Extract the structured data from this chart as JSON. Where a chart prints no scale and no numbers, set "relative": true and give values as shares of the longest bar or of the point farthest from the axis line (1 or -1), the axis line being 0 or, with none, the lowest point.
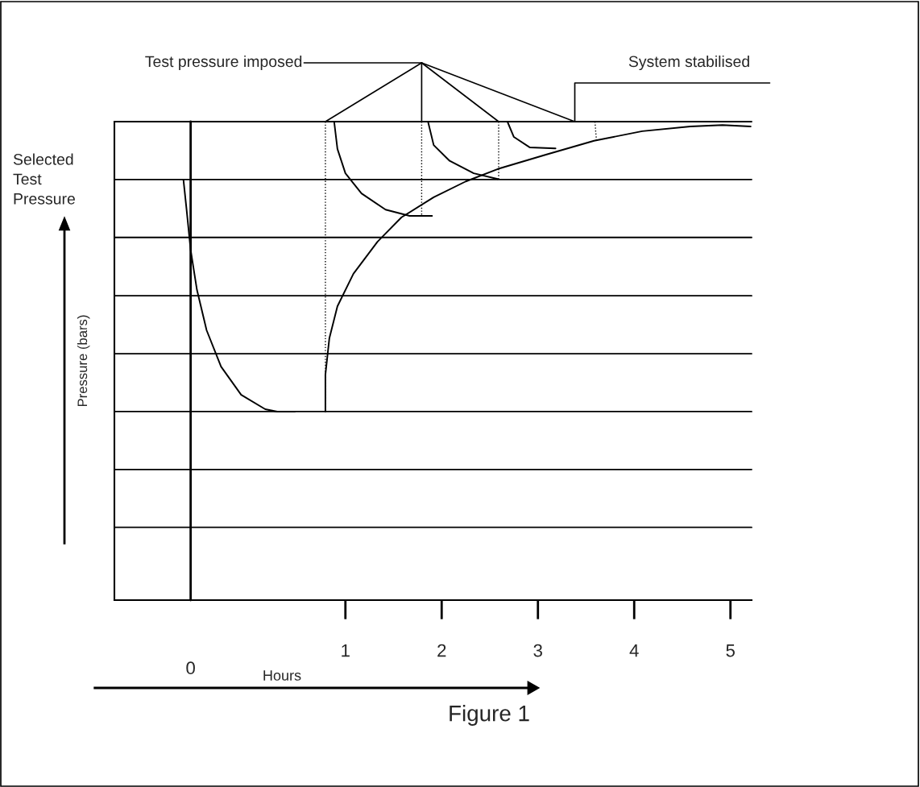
{
  "chart_data": {
    "type": "line",
    "title": "Figure 1",
    "xlabel": "Hours",
    "ylabel": "Pressure (bars)",
    "relative": true,
    "xlim": [
      -1.4,
      5.22
    ],
    "xticks": [
      1,
      2,
      3,
      4,
      5
    ],
    "series": [
      {
        "color": "#000000",
        "x": [
          -0.683,
          -0.65,
          -0.608,
          -0.542,
          -0.442,
          -0.292,
          -0.083,
          0.167,
          0.292,
          0.475
        ],
        "values": [
          0.879,
          0.816,
          0.732,
          0.648,
          0.564,
          0.488,
          0.429,
          0.399,
          0.394,
          0.394
        ]
      },
      {
        "color": "#000000",
        "x": [
          0.792,
          0.792,
          0.833,
          0.917,
          1.083,
          1.333,
          1.583,
          1.917,
          2.25,
          2.583,
          3.083,
          3.583,
          4.083,
          4.583,
          4.917,
          5.21
        ],
        "values": [
          0.394,
          0.471,
          0.547,
          0.614,
          0.682,
          0.749,
          0.8,
          0.842,
          0.875,
          0.901,
          0.931,
          0.96,
          0.98,
          0.99,
          0.993,
          0.99
        ]
      },
      {
        "color": "#000000",
        "x": [
          0.883,
          0.917,
          1.0,
          1.167,
          1.417,
          1.667,
          1.9
        ],
        "values": [
          1,
          0.943,
          0.892,
          0.85,
          0.816,
          0.803,
          0.803
        ]
      },
      {
        "color": "#000000",
        "x": [
          1.858,
          1.917,
          2.083,
          2.333,
          2.583
        ],
        "values": [
          1,
          0.951,
          0.918,
          0.892,
          0.88
        ]
      },
      {
        "color": "#000000",
        "x": [
          2.683,
          2.75,
          2.917,
          3.183
        ],
        "values": [
          1,
          0.968,
          0.946,
          0.944
        ]
      },
      {
        "color": "#000000",
        "line_style": "dotted",
        "x": [
          0.792,
          0.792
        ],
        "values": [
          1,
          0.394
        ]
      },
      {
        "color": "#000000",
        "line_style": "dotted",
        "x": [
          1.792,
          1.792
        ],
        "values": [
          1,
          0.803
        ]
      },
      {
        "color": "#000000",
        "line_style": "dotted",
        "x": [
          2.592,
          2.592
        ],
        "values": [
          1,
          0.88
        ]
      },
      {
        "color": "#000000",
        "line_style": "dotted",
        "x": [
          3.592,
          3.608
        ],
        "values": [
          1,
          0.96
        ]
      }
    ],
    "ref_lines": [
      {
        "axis": "x",
        "value": -0.608,
        "color": "#000000"
      },
      {
        "axis": "y",
        "value": 1,
        "color": "#000000"
      },
      {
        "axis": "y",
        "value": 0.879,
        "color": "#000000"
      },
      {
        "axis": "y",
        "value": 0.758,
        "color": "#000000"
      },
      {
        "axis": "y",
        "value": 0.636,
        "color": "#000000"
      },
      {
        "axis": "y",
        "value": 0.515,
        "color": "#000000"
      },
      {
        "axis": "y",
        "value": 0.394,
        "color": "#000000"
      },
      {
        "axis": "y",
        "value": 0.273,
        "color": "#000000"
      },
      {
        "axis": "y",
        "value": 0.152,
        "color": "#000000"
      }
    ],
    "annotations": [
      "Test pressure imposed",
      {
        "text": "System stabilised",
        "x": 3.383,
        "y": 1
      },
      "Selected\nTest\nPressure",
      "0"
    ]
  }
}
